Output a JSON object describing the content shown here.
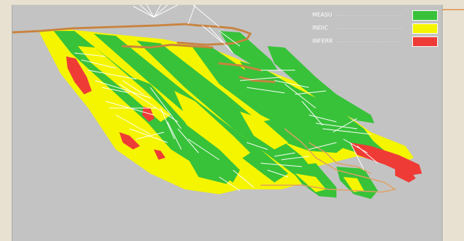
{
  "legend": {
    "items": [
      {
        "label": "MEASU",
        "color": "#38c23a"
      },
      {
        "label": "INDIC",
        "color": "#f5f500"
      },
      {
        "label": "INFERR",
        "color": "#ef3b36"
      }
    ]
  },
  "colors": {
    "background": "#c3c3c3",
    "frame": "#e8e1d1",
    "drillhole": "#ffffff",
    "topography": "#c9833f",
    "measured": "#38c23a",
    "indicated": "#f5f500",
    "inferred": "#ef3b36"
  }
}
